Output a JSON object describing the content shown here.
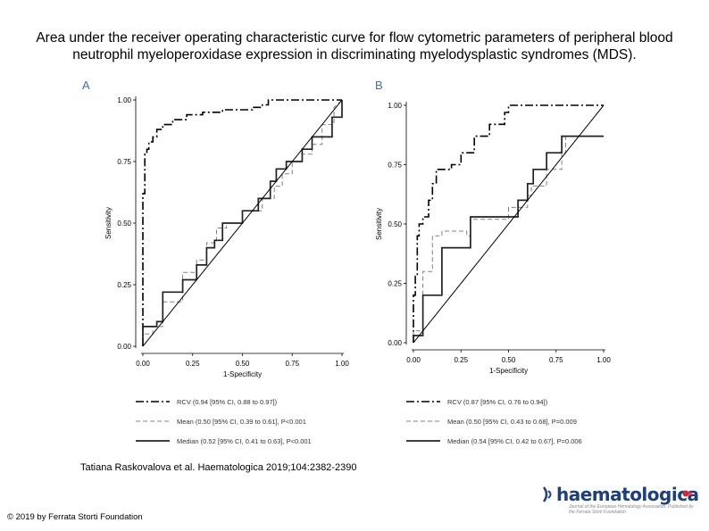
{
  "slide": {
    "title": "Area under the receiver operating characteristic curve for flow cytometric parameters of peripheral blood neutrophil myeloperoxidase expression in discriminating myelodysplastic syndromes (MDS).",
    "citation": "Tatiana Raskovalova et al. Haematologica 2019;104:2382-2390",
    "copyright": "© 2019 by Ferrata Storti Foundation",
    "brand": {
      "name": "haematologica",
      "tagline": "Journal of the European Hematology Association. Published by the Ferrata Storti Foundation"
    }
  },
  "colors": {
    "line": "#000000",
    "mean": "#808080",
    "median": "#222222",
    "diag": "#000000",
    "panel_letter": "#3b6fb6",
    "brand": "#1f3f7a",
    "brand_accent": "#cc2a36"
  },
  "chart_data": [
    {
      "type": "line",
      "panel": "A",
      "xlabel": "1-Specificity",
      "ylabel": "Sensitivity",
      "xlim": [
        0,
        1
      ],
      "ylim": [
        0,
        1
      ],
      "xticks": [
        "0.00",
        "0.25",
        "0.50",
        "0.75",
        "1.00"
      ],
      "yticks": [
        "0.00",
        "0.25",
        "0.50",
        "0.75",
        "1.00"
      ],
      "grid": false,
      "legend_position": "bottom",
      "series": [
        {
          "name": "RCV (0.94 [95% CI, 0.88 to 0.97])",
          "style": "dashdot",
          "x": [
            0,
            0,
            0.01,
            0.01,
            0.02,
            0.02,
            0.03,
            0.03,
            0.05,
            0.05,
            0.07,
            0.07,
            0.1,
            0.1,
            0.15,
            0.15,
            0.22,
            0.22,
            0.3,
            0.3,
            0.4,
            0.4,
            0.55,
            0.55,
            0.6,
            0.6,
            0.63,
            0.63,
            0.75,
            0.75,
            0.98,
            0.98,
            1.0
          ],
          "y": [
            0,
            0.62,
            0.62,
            0.78,
            0.78,
            0.8,
            0.8,
            0.83,
            0.83,
            0.85,
            0.85,
            0.88,
            0.88,
            0.9,
            0.9,
            0.92,
            0.92,
            0.94,
            0.94,
            0.95,
            0.95,
            0.96,
            0.96,
            0.97,
            0.97,
            0.98,
            0.98,
            1.0,
            1.0,
            1.0,
            1.0,
            1.0,
            1.0
          ]
        },
        {
          "name": "Mean (0.50 [95% CI, 0.39 to 0.61], P<0.001",
          "style": "dashed",
          "x": [
            0,
            0,
            0.05,
            0.05,
            0.1,
            0.1,
            0.2,
            0.2,
            0.27,
            0.27,
            0.32,
            0.32,
            0.37,
            0.37,
            0.42,
            0.42,
            0.5,
            0.5,
            0.6,
            0.6,
            0.66,
            0.66,
            0.7,
            0.7,
            0.75,
            0.75,
            0.8,
            0.8,
            0.85,
            0.85,
            0.9,
            0.9,
            0.96,
            0.96,
            1.0
          ],
          "y": [
            0,
            0.05,
            0.05,
            0.08,
            0.08,
            0.18,
            0.18,
            0.3,
            0.3,
            0.35,
            0.35,
            0.42,
            0.42,
            0.48,
            0.48,
            0.5,
            0.5,
            0.55,
            0.55,
            0.6,
            0.6,
            0.65,
            0.65,
            0.7,
            0.7,
            0.75,
            0.75,
            0.78,
            0.78,
            0.82,
            0.82,
            0.9,
            0.9,
            0.97,
            1.0
          ]
        },
        {
          "name": "Median (0.52 [95% CI, 0.41 to 0.63], P<0.001",
          "style": "solid",
          "x": [
            0,
            0,
            0.07,
            0.07,
            0.1,
            0.1,
            0.2,
            0.2,
            0.27,
            0.27,
            0.32,
            0.32,
            0.36,
            0.36,
            0.4,
            0.4,
            0.5,
            0.5,
            0.58,
            0.58,
            0.64,
            0.64,
            0.67,
            0.67,
            0.72,
            0.72,
            0.8,
            0.8,
            0.85,
            0.85,
            0.95,
            0.95,
            1.0,
            1.0
          ],
          "y": [
            0,
            0.08,
            0.08,
            0.1,
            0.1,
            0.22,
            0.22,
            0.27,
            0.27,
            0.33,
            0.33,
            0.4,
            0.4,
            0.43,
            0.43,
            0.5,
            0.5,
            0.55,
            0.55,
            0.6,
            0.6,
            0.67,
            0.67,
            0.72,
            0.72,
            0.75,
            0.75,
            0.8,
            0.8,
            0.85,
            0.85,
            0.93,
            0.93,
            1.0
          ]
        },
        {
          "name": "",
          "style": "diagonal",
          "x": [
            0,
            1
          ],
          "y": [
            0,
            1
          ]
        }
      ]
    },
    {
      "type": "line",
      "panel": "B",
      "xlabel": "1-Specificity",
      "ylabel": "Sensitivity",
      "xlim": [
        0,
        1
      ],
      "ylim": [
        0,
        1
      ],
      "xticks": [
        "0.00",
        "0.25",
        "0.50",
        "0.75",
        "1.00"
      ],
      "yticks": [
        "0.00",
        "0.25",
        "0.50",
        "0.75",
        "1.00"
      ],
      "grid": false,
      "legend_position": "bottom",
      "series": [
        {
          "name": "RCV (0.87 [95% CI, 0.76 to 0.94])",
          "style": "dashdot",
          "x": [
            0,
            0,
            0.01,
            0.01,
            0.02,
            0.02,
            0.03,
            0.03,
            0.05,
            0.05,
            0.08,
            0.08,
            0.1,
            0.1,
            0.12,
            0.12,
            0.2,
            0.2,
            0.25,
            0.25,
            0.32,
            0.32,
            0.4,
            0.4,
            0.48,
            0.48,
            0.5,
            0.5,
            0.55,
            0.55,
            1.0
          ],
          "y": [
            0,
            0.2,
            0.2,
            0.28,
            0.28,
            0.45,
            0.45,
            0.5,
            0.5,
            0.53,
            0.53,
            0.6,
            0.6,
            0.67,
            0.67,
            0.73,
            0.73,
            0.75,
            0.75,
            0.8,
            0.8,
            0.87,
            0.87,
            0.92,
            0.92,
            0.97,
            0.97,
            1.0,
            1.0,
            1.0,
            1.0
          ]
        },
        {
          "name": "Mean (0.50 [95% CI, 0.43 to 0.68], P=0.009",
          "style": "dashed",
          "x": [
            0,
            0,
            0.05,
            0.05,
            0.1,
            0.1,
            0.15,
            0.15,
            0.28,
            0.28,
            0.3,
            0.3,
            0.5,
            0.5,
            0.6,
            0.6,
            0.62,
            0.62,
            0.7,
            0.7,
            0.78,
            0.78,
            0.8,
            0.8,
            0.88,
            0.88,
            1.0
          ],
          "y": [
            0,
            0.05,
            0.05,
            0.3,
            0.3,
            0.45,
            0.45,
            0.47,
            0.47,
            0.45,
            0.45,
            0.52,
            0.52,
            0.57,
            0.57,
            0.62,
            0.62,
            0.66,
            0.66,
            0.73,
            0.73,
            0.8,
            0.8,
            0.87,
            0.87,
            0.87,
            0.87
          ]
        },
        {
          "name": "Median (0.54 [95% CI, 0.42 to 0.67], P=0.006",
          "style": "solid",
          "x": [
            0,
            0,
            0.05,
            0.05,
            0.15,
            0.15,
            0.3,
            0.3,
            0.55,
            0.55,
            0.6,
            0.6,
            0.63,
            0.63,
            0.7,
            0.7,
            0.78,
            0.78,
            0.87,
            0.87,
            1.0
          ],
          "y": [
            0,
            0.03,
            0.03,
            0.2,
            0.2,
            0.4,
            0.4,
            0.53,
            0.53,
            0.6,
            0.6,
            0.67,
            0.67,
            0.73,
            0.73,
            0.8,
            0.8,
            0.87,
            0.87,
            0.87,
            0.87
          ]
        },
        {
          "name": "",
          "style": "diagonal",
          "x": [
            0,
            1
          ],
          "y": [
            0,
            1
          ]
        }
      ]
    }
  ]
}
